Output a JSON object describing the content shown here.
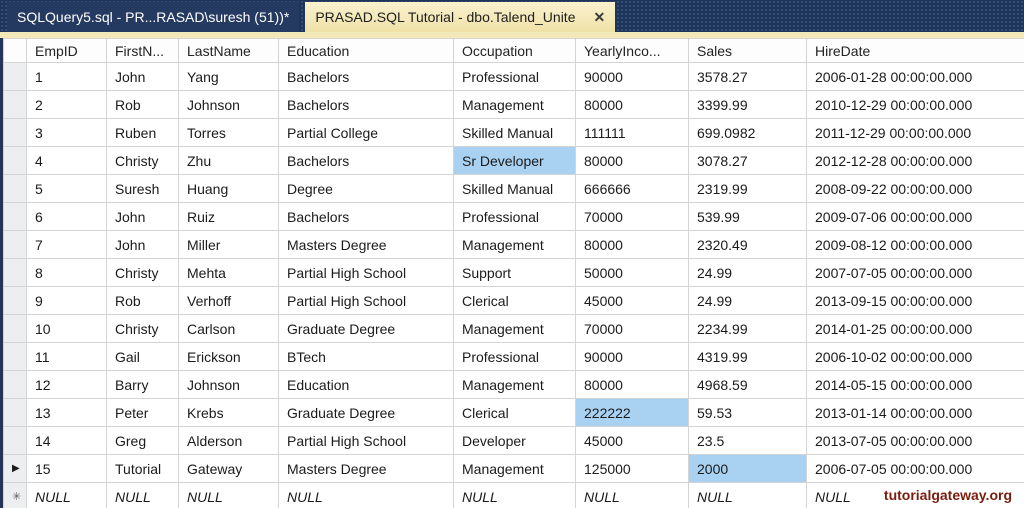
{
  "tabs": [
    {
      "label": "SQLQuery5.sql - PR...RASAD\\suresh (51))*",
      "active": false
    },
    {
      "label": "PRASAD.SQL Tutorial - dbo.Talend_Unite",
      "active": true,
      "close_icon": "✕"
    }
  ],
  "grid": {
    "columns": [
      "EmpID",
      "FirstN...",
      "LastName",
      "Education",
      "Occupation",
      "YearlyInco...",
      "Sales",
      "HireDate"
    ],
    "rows": [
      {
        "marker": "",
        "cells": [
          "1",
          "John",
          "Yang",
          "Bachelors",
          "Professional",
          "90000",
          "3578.27",
          "2006-01-28 00:00:00.000"
        ]
      },
      {
        "marker": "",
        "cells": [
          "2",
          "Rob",
          "Johnson",
          "Bachelors",
          "Management",
          "80000",
          "3399.99",
          "2010-12-29 00:00:00.000"
        ]
      },
      {
        "marker": "",
        "cells": [
          "3",
          "Ruben",
          "Torres",
          "Partial College",
          "Skilled Manual",
          "111111",
          "699.0982",
          "2011-12-29 00:00:00.000"
        ]
      },
      {
        "marker": "",
        "cells": [
          "4",
          "Christy",
          "Zhu",
          "Bachelors",
          "Sr Developer",
          "80000",
          "3078.27",
          "2012-12-28 00:00:00.000"
        ]
      },
      {
        "marker": "",
        "cells": [
          "5",
          "Suresh",
          "Huang",
          "Degree",
          "Skilled Manual",
          "666666",
          "2319.99",
          "2008-09-22 00:00:00.000"
        ]
      },
      {
        "marker": "",
        "cells": [
          "6",
          "John",
          "Ruiz",
          "Bachelors",
          "Professional",
          "70000",
          "539.99",
          "2009-07-06 00:00:00.000"
        ]
      },
      {
        "marker": "",
        "cells": [
          "7",
          "John",
          "Miller",
          "Masters Degree",
          "Management",
          "80000",
          "2320.49",
          "2009-08-12 00:00:00.000"
        ]
      },
      {
        "marker": "",
        "cells": [
          "8",
          "Christy",
          "Mehta",
          "Partial High School",
          "Support",
          "50000",
          "24.99",
          "2007-07-05 00:00:00.000"
        ]
      },
      {
        "marker": "",
        "cells": [
          "9",
          "Rob",
          "Verhoff",
          "Partial High School",
          "Clerical",
          "45000",
          "24.99",
          "2013-09-15 00:00:00.000"
        ]
      },
      {
        "marker": "",
        "cells": [
          "10",
          "Christy",
          "Carlson",
          "Graduate Degree",
          "Management",
          "70000",
          "2234.99",
          "2014-01-25 00:00:00.000"
        ]
      },
      {
        "marker": "",
        "cells": [
          "11",
          "Gail",
          "Erickson",
          "BTech",
          "Professional",
          "90000",
          "4319.99",
          "2006-10-02 00:00:00.000"
        ]
      },
      {
        "marker": "",
        "cells": [
          "12",
          "Barry",
          "Johnson",
          "Education",
          "Management",
          "80000",
          "4968.59",
          "2014-05-15 00:00:00.000"
        ]
      },
      {
        "marker": "",
        "cells": [
          "13",
          "Peter",
          "Krebs",
          "Graduate Degree",
          "Clerical",
          "222222",
          "59.53",
          "2013-01-14 00:00:00.000"
        ]
      },
      {
        "marker": "",
        "cells": [
          "14",
          "Greg",
          "Alderson",
          "Partial High School",
          "Developer",
          "45000",
          "23.5",
          "2013-07-05 00:00:00.000"
        ]
      },
      {
        "marker": "▶",
        "cells": [
          "15",
          "Tutorial",
          "Gateway",
          "Masters Degree",
          "Management",
          "125000",
          "2000",
          "2006-07-05 00:00:00.000"
        ]
      },
      {
        "marker": "✳",
        "cells": [
          "NULL",
          "NULL",
          "NULL",
          "NULL",
          "NULL",
          "NULL",
          "NULL",
          "NULL"
        ]
      }
    ],
    "highlighted_cells": [
      {
        "row": 3,
        "col": 4
      },
      {
        "row": 12,
        "col": 5
      },
      {
        "row": 14,
        "col": 6
      }
    ],
    "current_row_marker": "▶",
    "new_row_marker": "✳"
  },
  "watermark": "tutorialgateway.org",
  "colors": {
    "tab_bar_bg": "#1e3459",
    "inactive_tab_bg": "#243a61",
    "active_tab_bg": "#faf2cf",
    "active_tab_bg2": "#efe1a7",
    "tab_text_light": "#ffffff",
    "tab_text_dark": "#1e1e1e",
    "accent_strip": "#f3e8b7",
    "grid_line": "#d4d4d4",
    "row_header_bg": "#eceef0",
    "cell_highlight": "#a9d2f2",
    "watermark_color": "#7a1d0e",
    "left_edge": "#23365a"
  }
}
